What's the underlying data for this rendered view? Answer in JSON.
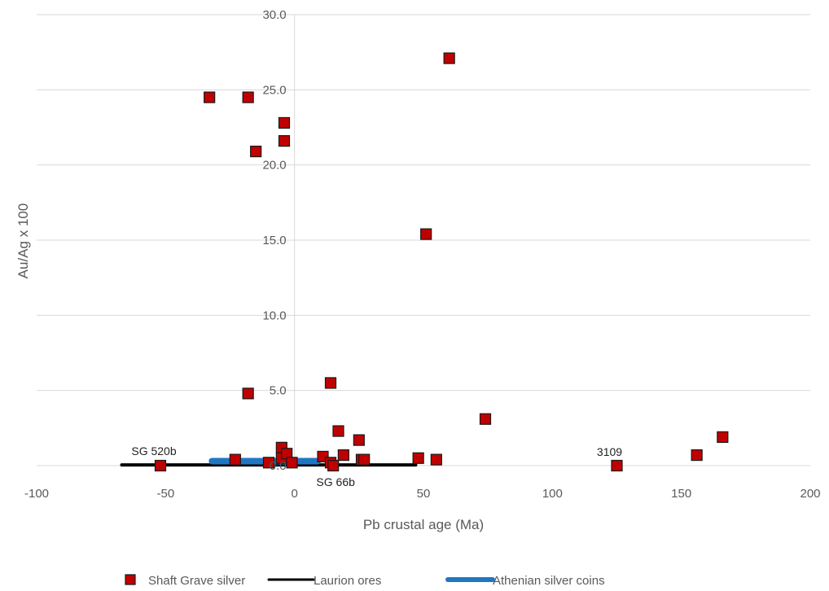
{
  "chart_data": {
    "type": "scatter",
    "xlabel": "Pb crustal age (Ma)",
    "ylabel": "Au/Ag x 100",
    "xlim": [
      -100,
      200
    ],
    "ylim": [
      0,
      30
    ],
    "x_ticks": [
      "-100",
      "-50",
      "0",
      "50",
      "100",
      "150",
      "200"
    ],
    "y_ticks": [
      "0.0",
      "5.0",
      "10.0",
      "15.0",
      "20.0",
      "25.0",
      "30.0"
    ],
    "x_tick_values": [
      -100,
      -50,
      0,
      50,
      100,
      150,
      200
    ],
    "y_tick_values": [
      0,
      5,
      10,
      15,
      20,
      25,
      30
    ],
    "grid": "horizontal",
    "legend_position": "bottom",
    "series": [
      {
        "name": "Shaft Grave silver",
        "kind": "markers",
        "color": "#c00000",
        "points": [
          {
            "x": -33,
            "y": 24.5
          },
          {
            "x": -18,
            "y": 24.5
          },
          {
            "x": -4,
            "y": 22.8
          },
          {
            "x": -4,
            "y": 21.6
          },
          {
            "x": -15,
            "y": 20.9
          },
          {
            "x": 60,
            "y": 27.1
          },
          {
            "x": 51,
            "y": 15.4
          },
          {
            "x": 14,
            "y": 5.5
          },
          {
            "x": -18,
            "y": 4.8
          },
          {
            "x": 74,
            "y": 3.1
          },
          {
            "x": 166,
            "y": 1.9
          },
          {
            "x": 156,
            "y": 0.7
          },
          {
            "x": 125,
            "y": 0.0
          },
          {
            "x": -52,
            "y": 0.0
          },
          {
            "x": 17,
            "y": 2.3
          },
          {
            "x": 25,
            "y": 1.7
          },
          {
            "x": 19,
            "y": 0.7
          },
          {
            "x": 11,
            "y": 0.6
          },
          {
            "x": 26,
            "y": 0.4
          },
          {
            "x": 27,
            "y": 0.4
          },
          {
            "x": 48,
            "y": 0.5
          },
          {
            "x": 55,
            "y": 0.4
          },
          {
            "x": -23,
            "y": 0.4
          },
          {
            "x": -10,
            "y": 0.2
          },
          {
            "x": -5,
            "y": 1.2
          },
          {
            "x": -5,
            "y": 0.5
          },
          {
            "x": -3,
            "y": 0.8
          },
          {
            "x": -1,
            "y": 0.2
          },
          {
            "x": 14,
            "y": 0.2
          },
          {
            "x": 15,
            "y": 0.0
          }
        ]
      },
      {
        "name": "Laurion ores",
        "kind": "line",
        "color": "#000000",
        "points": [
          {
            "x": -67,
            "y": 0.05
          },
          {
            "x": 47,
            "y": 0.05
          }
        ]
      },
      {
        "name": "Athenian silver coins",
        "kind": "line",
        "color": "#1f77c4",
        "points": [
          {
            "x": -32,
            "y": 0.3
          },
          {
            "x": 9,
            "y": 0.3
          }
        ]
      }
    ],
    "annotations": [
      {
        "text": "SG 520b",
        "x": -52,
        "y": 0.0
      },
      {
        "text": "SG 66b",
        "x": 15,
        "y": 0.0
      },
      {
        "text": "3109",
        "x": 125,
        "y": 0.0
      }
    ]
  }
}
